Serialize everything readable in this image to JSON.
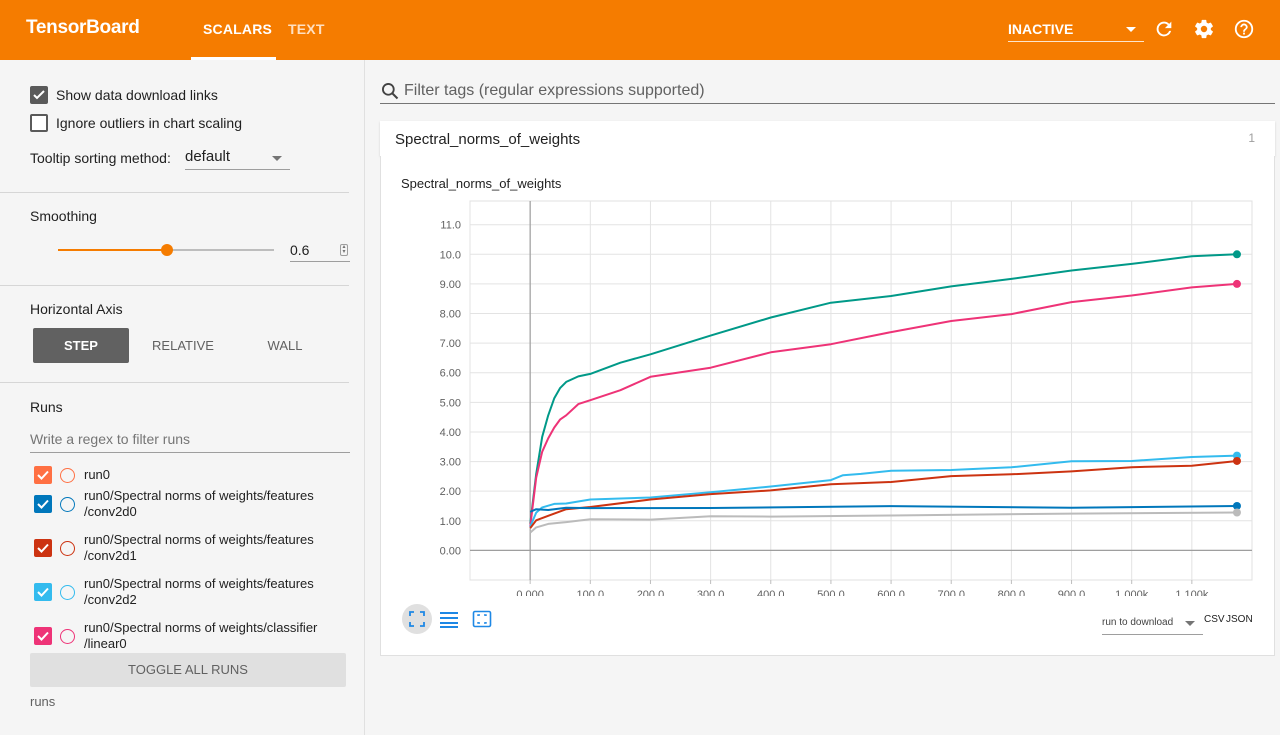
{
  "header": {
    "brand": "TensorBoard",
    "tabs": [
      {
        "label": "SCALARS"
      },
      {
        "label": "TEXT"
      }
    ],
    "active_tab": "SCALARS",
    "status_select": "INACTIVE",
    "icons": [
      "refresh-icon",
      "settings-icon",
      "help-icon"
    ],
    "accent_color": "#f57c00"
  },
  "sidebar": {
    "show_download_links": {
      "label": "Show data download links",
      "checked": true
    },
    "ignore_outliers": {
      "label": "Ignore outliers in chart scaling",
      "checked": false
    },
    "tooltip_sorting": {
      "label": "Tooltip sorting method:",
      "value": "default"
    },
    "smoothing": {
      "title": "Smoothing",
      "value": "0.6",
      "fraction": 0.6
    },
    "horizontal_axis": {
      "title": "Horizontal Axis",
      "options": [
        "STEP",
        "RELATIVE",
        "WALL"
      ],
      "selected": "STEP"
    },
    "runs": {
      "title": "Runs",
      "filter_placeholder": "Write a regex to filter runs",
      "items": [
        {
          "label": "run0",
          "color": "#ff7043",
          "checked": true
        },
        {
          "label": "run0/Spectral norms of weights/features /conv2d0",
          "color": "#0077bb",
          "checked": true
        },
        {
          "label": "run0/Spectral norms of weights/features /conv2d1",
          "color": "#cc3311",
          "checked": true
        },
        {
          "label": "run0/Spectral norms of weights/features /conv2d2",
          "color": "#33bbee",
          "checked": true
        },
        {
          "label": "run0/Spectral norms of weights/classifier /linear0",
          "color": "#ee3377",
          "checked": true
        }
      ],
      "toggle_all_label": "TOGGLE ALL RUNS",
      "footer": "runs"
    }
  },
  "main": {
    "filter_placeholder": "Filter tags (regular expressions supported)",
    "category": {
      "name": "Spectral_norms_of_weights",
      "count": "1"
    },
    "card": {
      "title": "Spectral_norms_of_weights",
      "download_select": "run to download",
      "links": [
        "CSV",
        "JSON"
      ],
      "tools": [
        "fit-domain-icon",
        "log-scale-icon",
        "expand-icon"
      ]
    }
  },
  "chart_data": {
    "type": "line",
    "title": "Spectral_norms_of_weights",
    "xlim": [
      -100,
      1200
    ],
    "ylim": [
      -1,
      11.8
    ],
    "x_ticks": [
      "0.000",
      "100.0",
      "200.0",
      "300.0",
      "400.0",
      "500.0",
      "600.0",
      "700.0",
      "800.0",
      "900.0",
      "1.000k",
      "1.100k"
    ],
    "y_ticks": [
      "0.00",
      "1.00",
      "2.00",
      "3.00",
      "4.00",
      "5.00",
      "6.00",
      "7.00",
      "8.00",
      "9.00",
      "10.0",
      "11.0"
    ],
    "grid": true,
    "series": [
      {
        "color": "#009988",
        "x": [
          0,
          10,
          20,
          30,
          40,
          50,
          60,
          80,
          100,
          150,
          200,
          300,
          400,
          500,
          600,
          700,
          800,
          900,
          1000,
          1100,
          1175
        ],
        "y": [
          0.9,
          2.6,
          3.8,
          4.6,
          5.1,
          5.5,
          5.7,
          5.85,
          6.0,
          6.3,
          6.65,
          7.25,
          7.85,
          8.4,
          8.55,
          8.95,
          9.15,
          9.45,
          9.7,
          9.9,
          10.0
        ]
      },
      {
        "color": "#ee3377",
        "x": [
          0,
          10,
          20,
          30,
          40,
          50,
          60,
          80,
          100,
          150,
          200,
          300,
          400,
          500,
          600,
          700,
          800,
          900,
          1000,
          1100,
          1175
        ],
        "y": [
          0.8,
          2.5,
          3.3,
          3.8,
          4.15,
          4.4,
          4.6,
          4.9,
          5.1,
          5.4,
          5.85,
          6.2,
          6.65,
          7.0,
          7.35,
          7.75,
          8.0,
          8.35,
          8.65,
          8.85,
          9.0
        ]
      },
      {
        "color": "#33bbee",
        "x": [
          0,
          10,
          20,
          40,
          60,
          100,
          200,
          300,
          400,
          500,
          520,
          550,
          600,
          700,
          800,
          900,
          1000,
          1100,
          1175
        ],
        "y": [
          0.8,
          1.3,
          1.45,
          1.55,
          1.62,
          1.68,
          1.82,
          1.95,
          2.15,
          2.4,
          2.5,
          2.62,
          2.66,
          2.72,
          2.82,
          2.98,
          3.06,
          3.12,
          3.2
        ]
      },
      {
        "color": "#cc3311",
        "x": [
          0,
          10,
          30,
          60,
          100,
          200,
          300,
          400,
          500,
          600,
          700,
          800,
          900,
          1000,
          1100,
          1175
        ],
        "y": [
          0.75,
          1.0,
          1.2,
          1.35,
          1.5,
          1.7,
          1.9,
          2.05,
          2.2,
          2.35,
          2.48,
          2.58,
          2.68,
          2.78,
          2.9,
          3.02
        ]
      },
      {
        "color": "#0077bb",
        "x": [
          0,
          10,
          30,
          60,
          100,
          300,
          600,
          900,
          1175
        ],
        "y": [
          1.3,
          1.35,
          1.4,
          1.42,
          1.43,
          1.45,
          1.46,
          1.48,
          1.5
        ]
      },
      {
        "color": "#bbbbbb",
        "x": [
          0,
          10,
          30,
          60,
          100,
          200,
          300,
          400,
          600,
          900,
          1175
        ],
        "y": [
          0.6,
          0.75,
          0.9,
          0.97,
          1.02,
          1.08,
          1.12,
          1.16,
          1.18,
          1.22,
          1.28
        ]
      }
    ]
  }
}
